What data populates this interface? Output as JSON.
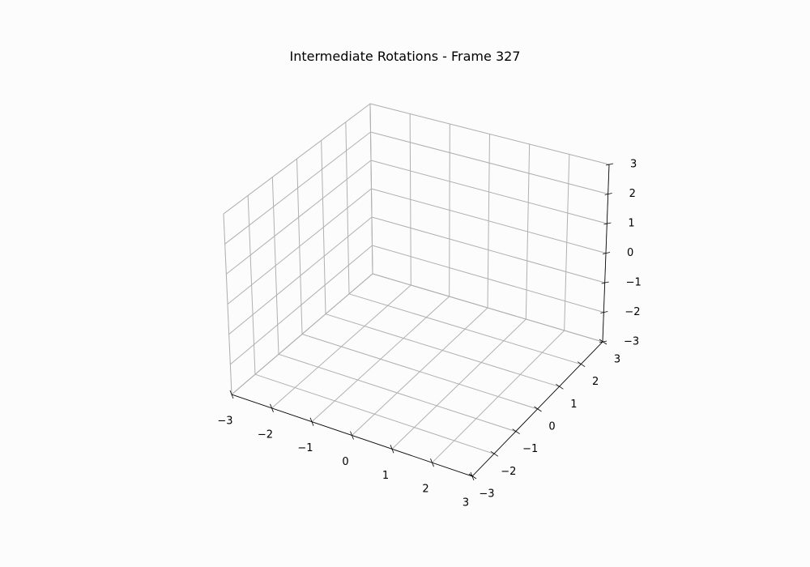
{
  "chart_data": {
    "type": "scatter",
    "projection": "3d",
    "title": "Intermediate Rotations - Frame 327",
    "xlabel": "",
    "ylabel": "",
    "zlabel": "",
    "xlim": [
      -3,
      3
    ],
    "ylim": [
      -3,
      3
    ],
    "zlim": [
      -3,
      3
    ],
    "x_ticks": [
      -3,
      -2,
      -1,
      0,
      1,
      2,
      3
    ],
    "y_ticks": [
      -3,
      -2,
      -1,
      0,
      1,
      2,
      3
    ],
    "z_ticks": [
      -3,
      -2,
      -1,
      0,
      1,
      2,
      3
    ],
    "x_tick_labels": [
      "−3",
      "−2",
      "−1",
      "0",
      "1",
      "2",
      "3"
    ],
    "y_tick_labels": [
      "−3",
      "−2",
      "−1",
      "0",
      "1",
      "2",
      "3"
    ],
    "z_tick_labels": [
      "−3",
      "−2",
      "−1",
      "0",
      "1",
      "2",
      "3"
    ],
    "grid": true,
    "series": [],
    "colors": {
      "background": "#fcfcfc",
      "grid": "#b0b0b0",
      "pane_edge": "#d0d0d0",
      "axis_line": "#000000",
      "text": "#000000"
    }
  }
}
